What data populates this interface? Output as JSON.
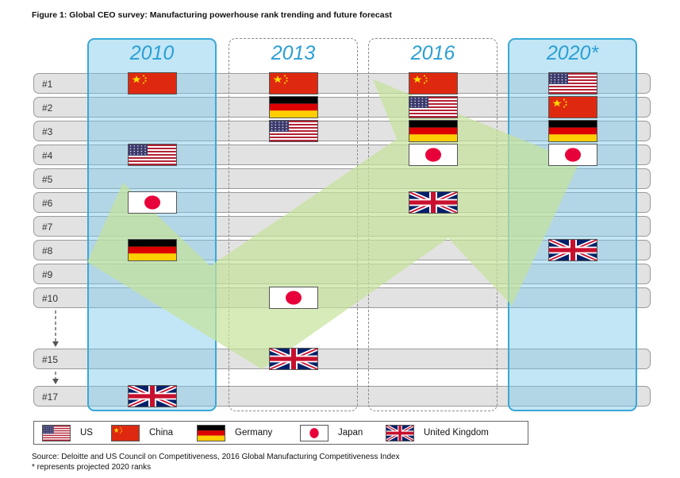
{
  "title": "Figure 1: Global CEO survey: Manufacturing powerhouse rank trending and future forecast",
  "chart_data": {
    "type": "table",
    "row_labels": [
      "#1",
      "#2",
      "#3",
      "#4",
      "#5",
      "#6",
      "#7",
      "#8",
      "#9",
      "#10",
      "#15",
      "#17"
    ],
    "columns": [
      {
        "year": "2010",
        "highlighted": true,
        "ranks": {
          "China": "#1",
          "US": "#4",
          "Japan": "#6",
          "Germany": "#8",
          "United Kingdom": "#17"
        }
      },
      {
        "year": "2013",
        "highlighted": false,
        "ranks": {
          "China": "#1",
          "Germany": "#2",
          "US": "#3",
          "Japan": "#10",
          "United Kingdom": "#15"
        }
      },
      {
        "year": "2016",
        "highlighted": false,
        "ranks": {
          "China": "#1",
          "US": "#2",
          "Germany": "#3",
          "Japan": "#4",
          "United Kingdom": "#6"
        }
      },
      {
        "year": "2020*",
        "highlighted": true,
        "ranks": {
          "US": "#1",
          "China": "#2",
          "Germany": "#3",
          "Japan": "#4",
          "United Kingdom": "#8"
        }
      }
    ]
  },
  "legend": [
    {
      "country": "US",
      "label": "US"
    },
    {
      "country": "China",
      "label": "China"
    },
    {
      "country": "Germany",
      "label": "Germany"
    },
    {
      "country": "Japan",
      "label": "Japan"
    },
    {
      "country": "United Kingdom",
      "label": "United Kingdom"
    }
  ],
  "footer": {
    "source": "Source: Deloitte and US Council on Competitiveness, 2016 Global Manufacturing Competitiveness Index",
    "note": "* represents projected 2020 ranks"
  },
  "colors": {
    "highlight_fill": "#9fd6ee",
    "highlight_border": "#3aa8d6",
    "year_text": "#2a9fd6",
    "row_fill": "#e2e2e2",
    "arrow_fill": "#c6e39a"
  }
}
